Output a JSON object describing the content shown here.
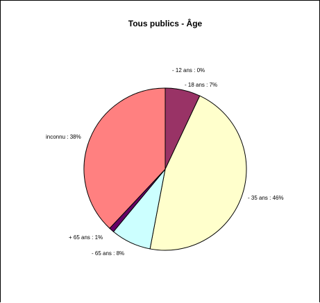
{
  "chart_data": {
    "type": "pie",
    "title": "Tous publics - Âge",
    "slices": [
      {
        "label": "- 12 ans : 0%",
        "value": 0,
        "color": "#FFFFFF"
      },
      {
        "label": "- 18 ans : 7%",
        "value": 7,
        "color": "#993366"
      },
      {
        "label": "- 35 ans : 46%",
        "value": 46,
        "color": "#FFFFCC"
      },
      {
        "label": "- 65 ans : 8%",
        "value": 8,
        "color": "#CCFFFF"
      },
      {
        "label": "+ 65 ans : 1%",
        "value": 1,
        "color": "#660066"
      },
      {
        "label": "inconnu : 38%",
        "value": 38,
        "color": "#FF8080"
      }
    ]
  }
}
